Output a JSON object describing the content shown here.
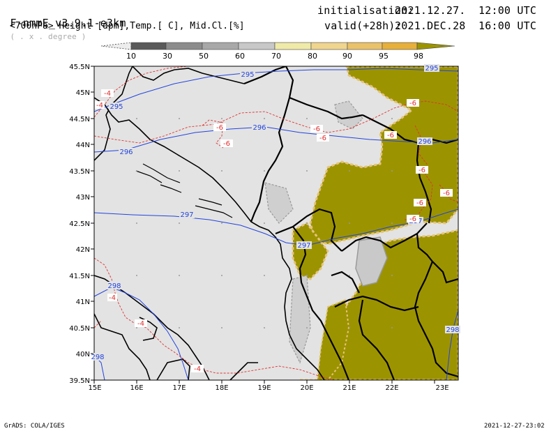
{
  "header": {
    "model": "F-nmmE_v3.9.1-e3km",
    "grid_unit": "( . x . degree )",
    "fields": "<700hPa> Height [dpm],Temp.[ C], Mid.Cl.[%]",
    "init_label": "initialisation:",
    "init_value": "2021.12.27.  12:00 UTC",
    "valid_label": "valid(+28h):",
    "valid_value": "2021.DEC.28  16:00 UTC"
  },
  "colorbar": {
    "labels": [
      "10",
      "30",
      "50",
      "60",
      "70",
      "80",
      "90",
      "95",
      "98"
    ],
    "colors": [
      "#e8e8e8",
      "#5a5a5a",
      "#8c8c8c",
      "#a8a8a8",
      "#c8c8c8",
      "#f0eaa8",
      "#efd58e",
      "#e9c26a",
      "#e7b03a",
      "#9c9300"
    ]
  },
  "map": {
    "lat_labels": [
      "45.5N",
      "45N",
      "44.5N",
      "44N",
      "43.5N",
      "43N",
      "42.5N",
      "42N",
      "41.5N",
      "41N",
      "40.5N",
      "40N",
      "39.5N"
    ],
    "lon_labels": [
      "15E",
      "16E",
      "17E",
      "18E",
      "19E",
      "20E",
      "21E",
      "22E",
      "23E"
    ],
    "height_contours": [
      "295",
      "295",
      "296",
      "296",
      "297",
      "297",
      "298",
      "298",
      "298"
    ],
    "temp_labels": [
      "-4",
      "-4",
      "-6",
      "-6",
      "-6",
      "-6",
      "-6",
      "-6",
      "-6",
      "-6",
      "-4",
      "-4",
      "-4"
    ],
    "colors": {
      "background": "#e3e3e3",
      "cloud": "#9c9300",
      "cloud_edge": "#e6c37a",
      "height_line": "#2244dd",
      "temp_line": "#e03030"
    }
  },
  "footer": {
    "left": "GrADS: COLA/IGES",
    "right": "2021-12-27-23:02"
  }
}
